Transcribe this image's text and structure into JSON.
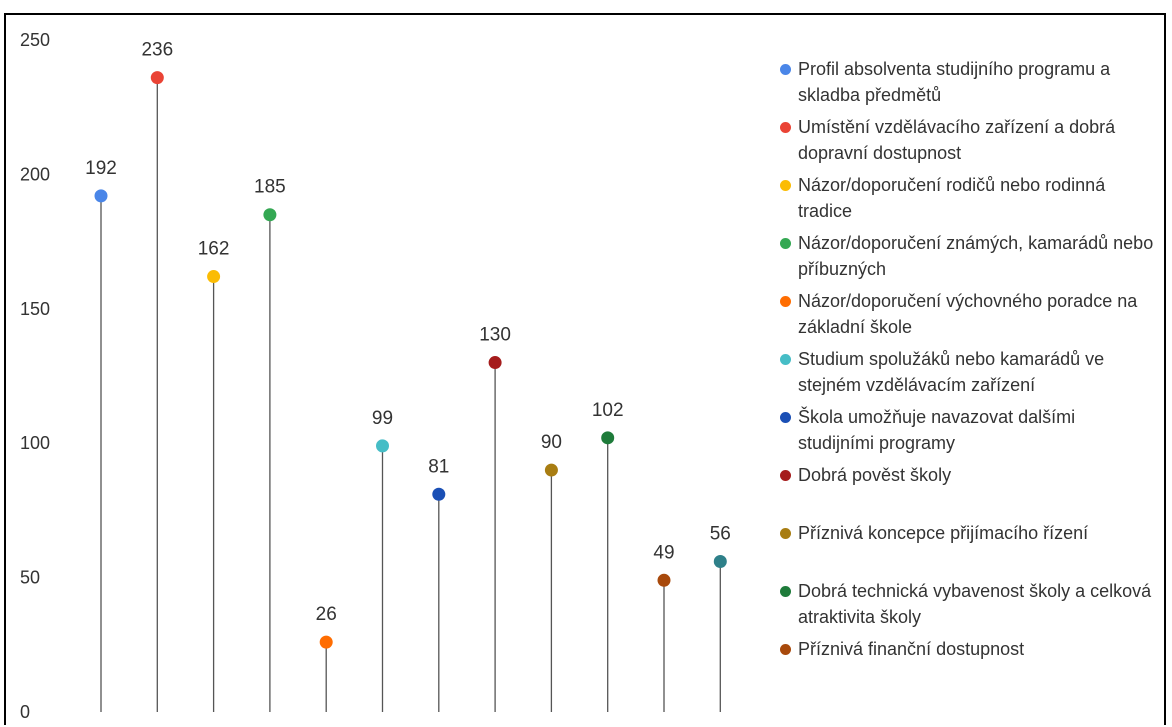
{
  "chart_data": {
    "type": "lollipop",
    "title": "",
    "xlabel": "",
    "ylabel": "",
    "ylim": [
      0,
      250
    ],
    "y_ticks": [
      0,
      50,
      100,
      150,
      200,
      250
    ],
    "grid": false,
    "legend_position": "right",
    "series": [
      {
        "name": "Profil absolventa studijního programu a skladba předmětů",
        "value": 192,
        "color": "#4A86E8"
      },
      {
        "name": "Umístění vzdělávacího zařízení a dobrá dopravní dostupnost",
        "value": 236,
        "color": "#EA4335"
      },
      {
        "name": "Názor/doporučení rodičů nebo rodinná tradice",
        "value": 162,
        "color": "#FBBC04"
      },
      {
        "name": "Názor/doporučení známých, kamarádů nebo příbuzných",
        "value": 185,
        "color": "#34A853"
      },
      {
        "name": "Názor/doporučení výchovného poradce na základní škole",
        "value": 26,
        "color": "#FF6D01"
      },
      {
        "name": "Studium spolužáků nebo kamarádů ve stejném vzdělávacím zařízení",
        "value": 99,
        "color": "#46BDC6"
      },
      {
        "name": "Škola umožňuje navazovat dalšími studijními programy",
        "value": 81,
        "color": "#1A4FB5"
      },
      {
        "name": "Dobrá pověst školy",
        "value": 130,
        "color": "#A51C1C"
      },
      {
        "name": "Příznivá koncepce přijímacího řízení",
        "value": 90,
        "color": "#A87D12"
      },
      {
        "name": "Dobrá technická vybavenost školy a celková atraktivita školy",
        "value": 102,
        "color": "#1E7B3A"
      },
      {
        "name": "Příznivá finanční dostupnost",
        "value": 49,
        "color": "#A8490B"
      },
      {
        "name": "",
        "value": 56,
        "color": "#2E8089"
      }
    ]
  }
}
